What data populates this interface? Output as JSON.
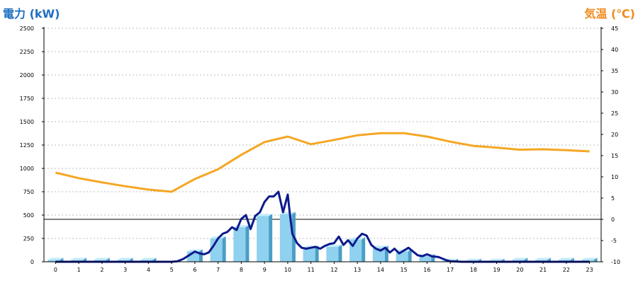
{
  "chart_data": {
    "type": "bar",
    "title": "",
    "ylabel_left": "電力 (kW)",
    "ylabel_right": "気温 (℃)",
    "xlabel": "",
    "categories": [
      "0",
      "1",
      "2",
      "3",
      "4",
      "5",
      "6",
      "7",
      "8",
      "9",
      "10",
      "11",
      "12",
      "13",
      "14",
      "15",
      "16",
      "17",
      "18",
      "19",
      "20",
      "21",
      "22",
      "23"
    ],
    "left_axis": {
      "ylim": [
        0,
        2500
      ],
      "ticks": [
        0,
        250,
        500,
        750,
        1000,
        1250,
        1500,
        1750,
        2000,
        2250,
        2500
      ]
    },
    "right_axis": {
      "ylim": [
        -10,
        45
      ],
      "ticks": [
        -10,
        -5,
        0,
        5,
        10,
        15,
        20,
        25,
        30,
        35,
        40,
        45
      ]
    },
    "grid": true,
    "series": [
      {
        "kind": "bar",
        "axis": "left",
        "color": "#8fd1ee",
        "dark": "#4a9ec6",
        "values": [
          20,
          20,
          20,
          20,
          20,
          0,
          110,
          250,
          370,
          490,
          510,
          150,
          160,
          240,
          150,
          110,
          60,
          10,
          10,
          10,
          20,
          20,
          20,
          20
        ]
      },
      {
        "kind": "line",
        "axis": "left",
        "color": "#0d1a8c",
        "width": 3,
        "x": [
          0,
          1,
          2,
          3,
          4,
          5,
          5.25,
          5.5,
          5.75,
          6,
          6.2,
          6.4,
          6.6,
          6.8,
          7,
          7.2,
          7.4,
          7.6,
          7.8,
          8,
          8.2,
          8.4,
          8.6,
          8.8,
          9,
          9.2,
          9.4,
          9.6,
          9.8,
          10,
          10.1,
          10.2,
          10.4,
          10.6,
          10.8,
          11,
          11.2,
          11.4,
          11.6,
          11.8,
          12,
          12.2,
          12.4,
          12.6,
          12.8,
          13,
          13.2,
          13.4,
          13.6,
          13.8,
          14,
          14.2,
          14.4,
          14.6,
          14.8,
          15,
          15.2,
          15.4,
          15.6,
          15.8,
          16,
          16.2,
          16.5,
          16.8,
          17,
          17.5,
          18,
          19,
          20,
          21,
          22,
          23
        ],
        "values": [
          0,
          0,
          0,
          0,
          0,
          0,
          5,
          30,
          70,
          110,
          90,
          80,
          100,
          170,
          250,
          300,
          320,
          370,
          340,
          460,
          500,
          350,
          490,
          530,
          640,
          700,
          700,
          750,
          530,
          720,
          500,
          300,
          200,
          150,
          140,
          150,
          160,
          140,
          170,
          190,
          200,
          270,
          180,
          230,
          170,
          250,
          300,
          280,
          180,
          140,
          120,
          150,
          100,
          140,
          90,
          120,
          150,
          110,
          70,
          60,
          80,
          60,
          50,
          20,
          5,
          0,
          0,
          0,
          0,
          0,
          0,
          0
        ]
      },
      {
        "kind": "line",
        "axis": "right",
        "color": "#f5a623",
        "width": 3,
        "x": [
          0,
          1,
          2,
          3,
          4,
          5,
          6,
          7,
          8,
          9,
          10,
          11,
          12,
          13,
          14,
          15,
          16,
          17,
          18,
          19,
          20,
          21,
          22,
          23
        ],
        "values": [
          11,
          9.7,
          8.7,
          7.8,
          7,
          6.5,
          9.5,
          11.8,
          15.2,
          18.2,
          19.5,
          17.7,
          18.7,
          19.8,
          20.3,
          20.3,
          19.5,
          18.3,
          17.3,
          16.9,
          16.4,
          16.5,
          16.3,
          16.0
        ]
      }
    ],
    "reference_line": {
      "axis": "right",
      "value": 0
    }
  }
}
